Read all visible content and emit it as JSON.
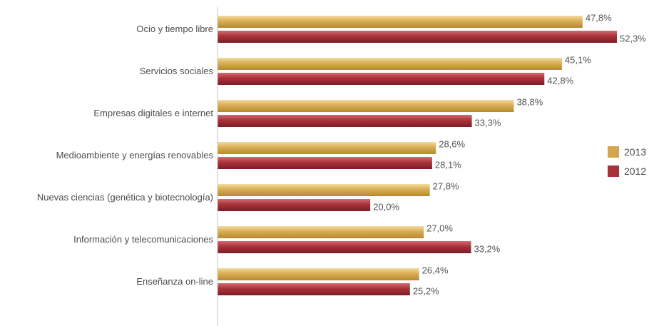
{
  "chart_data": {
    "type": "bar",
    "orientation": "horizontal",
    "categories": [
      "Ocio y tiempo libre",
      "Servicios sociales",
      "Empresas digitales e internet",
      "Medioambiente y energías renovables",
      "Nuevas ciencias (genética y biotecnología)",
      "Información y telecomunicaciones",
      "Enseñanza on-line"
    ],
    "series": [
      {
        "name": "2013",
        "color": "#d4a54a",
        "values": [
          47.8,
          45.1,
          38.8,
          28.6,
          27.8,
          27.0,
          26.4
        ],
        "labels": [
          "47,8%",
          "45,1%",
          "38,8%",
          "28,6%",
          "27,8%",
          "27,0%",
          "26,4%"
        ]
      },
      {
        "name": "2012",
        "color": "#a8323a",
        "values": [
          52.3,
          42.8,
          33.3,
          28.1,
          20.0,
          33.2,
          25.2
        ],
        "labels": [
          "52,3%",
          "42,8%",
          "33,3%",
          "28,1%",
          "20,0%",
          "33,2%",
          "25,2%"
        ]
      }
    ],
    "xlim": [
      0,
      52.3
    ],
    "grid": false,
    "legend_position": "right"
  }
}
